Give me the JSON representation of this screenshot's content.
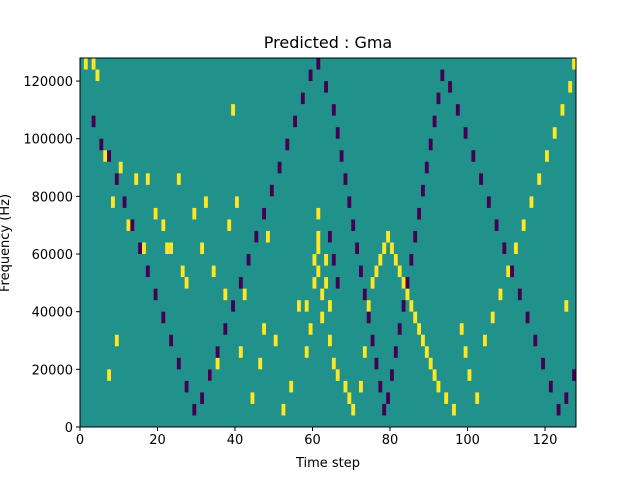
{
  "chart_data": {
    "type": "heatmap",
    "title": "Predicted : Gma",
    "xlabel": "Time step",
    "ylabel": "Frequency (Hz)",
    "xlim": [
      0,
      128
    ],
    "ylim": [
      0,
      128000
    ],
    "xticks": [
      0,
      20,
      40,
      60,
      80,
      100,
      120
    ],
    "yticks": [
      0,
      20000,
      40000,
      60000,
      80000,
      100000,
      120000
    ],
    "grid": false,
    "legend": "none",
    "colors": {
      "background": "#21918c",
      "high": "#fde725",
      "low": "#440154"
    },
    "cell_height_hz": 4000,
    "cells_high": [
      [
        1,
        124000
      ],
      [
        3,
        124000
      ],
      [
        4,
        120000
      ],
      [
        6,
        92000
      ],
      [
        7,
        16000
      ],
      [
        8,
        76000
      ],
      [
        9,
        28000
      ],
      [
        10,
        88000
      ],
      [
        12,
        68000
      ],
      [
        14,
        84000
      ],
      [
        16,
        60000
      ],
      [
        17,
        84000
      ],
      [
        19,
        72000
      ],
      [
        21,
        68000
      ],
      [
        22,
        60000
      ],
      [
        23,
        60000
      ],
      [
        25,
        84000
      ],
      [
        26,
        52000
      ],
      [
        27,
        48000
      ],
      [
        29,
        72000
      ],
      [
        31,
        60000
      ],
      [
        32,
        76000
      ],
      [
        33,
        16000
      ],
      [
        34,
        52000
      ],
      [
        35,
        20000
      ],
      [
        37,
        44000
      ],
      [
        38,
        68000
      ],
      [
        39,
        108000
      ],
      [
        40,
        76000
      ],
      [
        41,
        24000
      ],
      [
        42,
        44000
      ],
      [
        44,
        8000
      ],
      [
        46,
        20000
      ],
      [
        47,
        32000
      ],
      [
        48,
        64000
      ],
      [
        50,
        28000
      ],
      [
        52,
        4000
      ],
      [
        54,
        12000
      ],
      [
        56,
        40000
      ],
      [
        58,
        24000
      ],
      [
        58,
        40000
      ],
      [
        59,
        32000
      ],
      [
        60,
        48000
      ],
      [
        60,
        56000
      ],
      [
        61,
        52000
      ],
      [
        61,
        60000
      ],
      [
        61,
        64000
      ],
      [
        61,
        72000
      ],
      [
        62,
        36000
      ],
      [
        62,
        44000
      ],
      [
        63,
        48000
      ],
      [
        63,
        56000
      ],
      [
        64,
        40000
      ],
      [
        64,
        28000
      ],
      [
        65,
        20000
      ],
      [
        66,
        16000
      ],
      [
        68,
        12000
      ],
      [
        69,
        8000
      ],
      [
        70,
        4000
      ],
      [
        72,
        12000
      ],
      [
        73,
        24000
      ],
      [
        74,
        40000
      ],
      [
        75,
        48000
      ],
      [
        76,
        52000
      ],
      [
        77,
        56000
      ],
      [
        78,
        60000
      ],
      [
        79,
        64000
      ],
      [
        80,
        60000
      ],
      [
        81,
        56000
      ],
      [
        82,
        52000
      ],
      [
        83,
        48000
      ],
      [
        84,
        44000
      ],
      [
        85,
        40000
      ],
      [
        86,
        36000
      ],
      [
        87,
        32000
      ],
      [
        88,
        28000
      ],
      [
        89,
        24000
      ],
      [
        90,
        20000
      ],
      [
        91,
        16000
      ],
      [
        92,
        12000
      ],
      [
        94,
        8000
      ],
      [
        96,
        4000
      ],
      [
        98,
        32000
      ],
      [
        99,
        24000
      ],
      [
        100,
        16000
      ],
      [
        102,
        8000
      ],
      [
        104,
        28000
      ],
      [
        106,
        36000
      ],
      [
        108,
        44000
      ],
      [
        110,
        52000
      ],
      [
        112,
        60000
      ],
      [
        114,
        68000
      ],
      [
        116,
        76000
      ],
      [
        118,
        84000
      ],
      [
        120,
        92000
      ],
      [
        122,
        100000
      ],
      [
        124,
        108000
      ],
      [
        126,
        116000
      ],
      [
        127,
        124000
      ],
      [
        125,
        40000
      ]
    ],
    "cells_low": [
      [
        3,
        104000
      ],
      [
        5,
        96000
      ],
      [
        7,
        92000
      ],
      [
        9,
        84000
      ],
      [
        11,
        76000
      ],
      [
        13,
        68000
      ],
      [
        15,
        60000
      ],
      [
        17,
        52000
      ],
      [
        19,
        44000
      ],
      [
        21,
        36000
      ],
      [
        23,
        28000
      ],
      [
        25,
        20000
      ],
      [
        27,
        12000
      ],
      [
        29,
        4000
      ],
      [
        31,
        8000
      ],
      [
        33,
        16000
      ],
      [
        35,
        24000
      ],
      [
        37,
        32000
      ],
      [
        39,
        40000
      ],
      [
        41,
        48000
      ],
      [
        43,
        56000
      ],
      [
        45,
        64000
      ],
      [
        47,
        72000
      ],
      [
        49,
        80000
      ],
      [
        51,
        88000
      ],
      [
        53,
        96000
      ],
      [
        55,
        104000
      ],
      [
        57,
        112000
      ],
      [
        59,
        120000
      ],
      [
        61,
        124000
      ],
      [
        63,
        116000
      ],
      [
        65,
        108000
      ],
      [
        66,
        100000
      ],
      [
        67,
        92000
      ],
      [
        68,
        84000
      ],
      [
        69,
        76000
      ],
      [
        70,
        68000
      ],
      [
        71,
        60000
      ],
      [
        72,
        52000
      ],
      [
        73,
        44000
      ],
      [
        74,
        36000
      ],
      [
        75,
        28000
      ],
      [
        76,
        20000
      ],
      [
        77,
        12000
      ],
      [
        78,
        4000
      ],
      [
        79,
        8000
      ],
      [
        80,
        16000
      ],
      [
        81,
        24000
      ],
      [
        82,
        32000
      ],
      [
        83,
        40000
      ],
      [
        84,
        48000
      ],
      [
        85,
        56000
      ],
      [
        86,
        64000
      ],
      [
        87,
        72000
      ],
      [
        88,
        80000
      ],
      [
        89,
        88000
      ],
      [
        90,
        96000
      ],
      [
        91,
        104000
      ],
      [
        92,
        112000
      ],
      [
        93,
        120000
      ],
      [
        95,
        116000
      ],
      [
        97,
        108000
      ],
      [
        99,
        100000
      ],
      [
        101,
        92000
      ],
      [
        103,
        84000
      ],
      [
        105,
        76000
      ],
      [
        107,
        68000
      ],
      [
        109,
        60000
      ],
      [
        111,
        52000
      ],
      [
        113,
        44000
      ],
      [
        115,
        36000
      ],
      [
        117,
        28000
      ],
      [
        119,
        20000
      ],
      [
        121,
        12000
      ],
      [
        123,
        4000
      ],
      [
        125,
        8000
      ],
      [
        127,
        16000
      ],
      [
        64,
        64000
      ],
      [
        65,
        56000
      ],
      [
        66,
        48000
      ]
    ]
  }
}
